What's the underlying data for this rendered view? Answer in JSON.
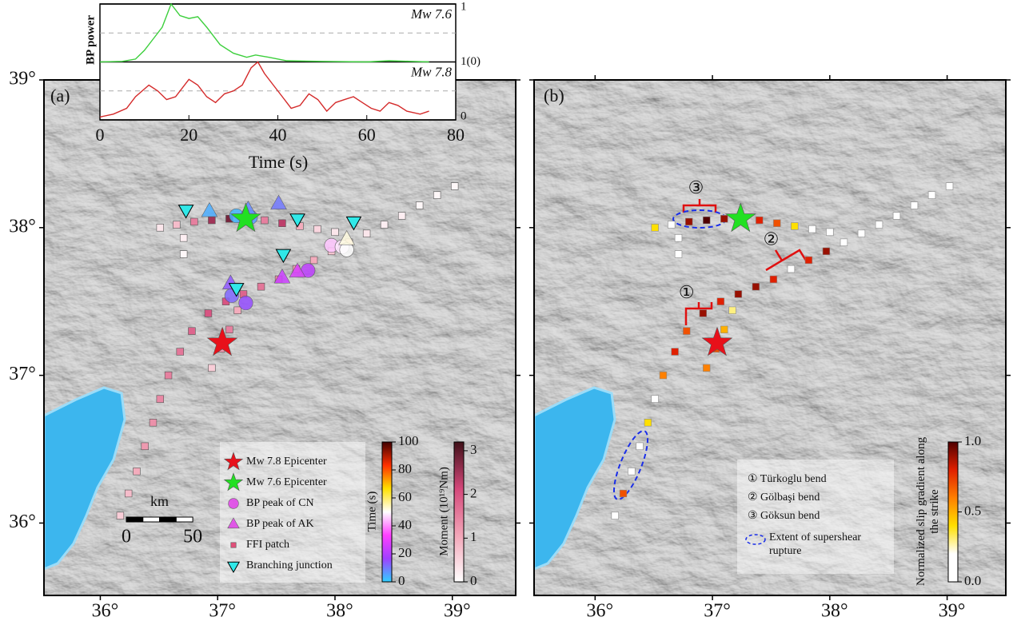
{
  "chart_data": [
    {
      "type": "line",
      "ylabel": "BP power",
      "xlabel": "Time (s)",
      "xlim": [
        0,
        80
      ],
      "xticks": [
        0,
        20,
        40,
        60,
        80
      ],
      "ylim": [
        0,
        2
      ],
      "yticks": [
        {
          "value": 0,
          "label": "0"
        },
        {
          "value": 1,
          "label": "1(0)"
        },
        {
          "value": 2,
          "label": "1"
        }
      ],
      "series": [
        {
          "name": "Mw 7.6",
          "color": "#3ccf3c",
          "x": [
            0,
            5,
            8,
            10,
            12,
            14,
            16,
            18,
            20,
            22,
            24,
            27,
            30,
            33,
            35,
            38,
            42,
            50,
            60,
            65,
            70,
            74
          ],
          "values": [
            1.0,
            1.01,
            1.05,
            1.2,
            1.4,
            1.6,
            2.0,
            1.8,
            1.75,
            1.78,
            1.6,
            1.3,
            1.15,
            1.08,
            1.12,
            1.08,
            1.02,
            1.01,
            1.0,
            1.02,
            1.01,
            1.0
          ]
        },
        {
          "name": "Mw 7.8",
          "color": "#d42a2a",
          "x": [
            0,
            3,
            6,
            8,
            11,
            13,
            15,
            17,
            20,
            22,
            24,
            26,
            28,
            30,
            32,
            34,
            35.5,
            37,
            39,
            41,
            43,
            45,
            47,
            49,
            51,
            53,
            55,
            57,
            59,
            61,
            63,
            65,
            67,
            69,
            72,
            74
          ],
          "values": [
            0.05,
            0.1,
            0.2,
            0.4,
            0.6,
            0.5,
            0.35,
            0.4,
            0.7,
            0.6,
            0.4,
            0.3,
            0.45,
            0.5,
            0.6,
            0.9,
            1.0,
            0.8,
            0.6,
            0.4,
            0.2,
            0.25,
            0.45,
            0.35,
            0.15,
            0.3,
            0.35,
            0.4,
            0.3,
            0.2,
            0.15,
            0.3,
            0.25,
            0.15,
            0.1,
            0.15
          ]
        }
      ]
    },
    {
      "type": "map",
      "panel_label": "(a)",
      "xlim": [
        35.52,
        39.54
      ],
      "ylim": [
        35.51,
        39.0
      ],
      "xticks": [
        {
          "value": 36,
          "label": "36°"
        },
        {
          "value": 37,
          "label": "37°"
        },
        {
          "value": 38,
          "label": "38°"
        },
        {
          "value": 39,
          "label": "39°"
        }
      ],
      "yticks": [
        {
          "value": 36,
          "label": "36°"
        },
        {
          "value": 37,
          "label": "37°"
        },
        {
          "value": 38,
          "label": "38°"
        },
        {
          "value": 39,
          "label": "39°"
        }
      ],
      "series": [
        {
          "name": "Mw 7.8 Epicenter",
          "marker": "star",
          "color": "#e8101a",
          "x": [
            37.04
          ],
          "y": [
            37.22
          ]
        },
        {
          "name": "Mw 7.6 Epicenter",
          "marker": "star",
          "color": "#22e022",
          "x": [
            37.24
          ],
          "y": [
            38.06
          ]
        },
        {
          "name": "BP peak of CN",
          "marker": "circle",
          "color": "#e040e8",
          "x": [
            37.97,
            38.06,
            38.1,
            37.77,
            37.24,
            37.12,
            37.16,
            37.28
          ],
          "y": [
            37.88,
            37.87,
            37.85,
            37.71,
            37.49,
            37.54,
            38.08,
            38.07
          ],
          "time": [
            45,
            48,
            50,
            22,
            15,
            12,
            3,
            6
          ]
        },
        {
          "name": "BP peak of AK",
          "marker": "triangle",
          "color": "#e040e8",
          "x": [
            36.93,
            37.26,
            37.52,
            37.11,
            37.55,
            37.68,
            38.1
          ],
          "y": [
            38.11,
            38.12,
            38.16,
            37.62,
            37.66,
            37.7,
            37.92
          ],
          "time": [
            4,
            8,
            10,
            14,
            24,
            27,
            52
          ]
        },
        {
          "name": "FFI patch",
          "marker": "square",
          "color": "#e0507a",
          "x": [
            36.17,
            36.24,
            36.31,
            36.38,
            36.45,
            36.51,
            36.58,
            36.68,
            36.78,
            36.92,
            37.07,
            37.22,
            37.37,
            37.52,
            37.67,
            37.82,
            37.97,
            38.12,
            38.27,
            38.42,
            38.57,
            38.72,
            38.87,
            39.02,
            36.95,
            37.03,
            37.1,
            37.17,
            36.51,
            36.65,
            36.8,
            36.95,
            37.1,
            37.25,
            37.4,
            37.55,
            37.7,
            37.85,
            38.0,
            36.71,
            36.71
          ],
          "y": [
            36.05,
            36.2,
            36.35,
            36.52,
            36.68,
            36.84,
            37.0,
            37.16,
            37.3,
            37.42,
            37.5,
            37.55,
            37.6,
            37.65,
            37.72,
            37.78,
            37.84,
            37.9,
            37.96,
            38.02,
            38.08,
            38.15,
            38.22,
            38.28,
            37.05,
            37.18,
            37.31,
            37.44,
            38.0,
            38.02,
            38.04,
            38.05,
            38.06,
            38.06,
            38.05,
            38.03,
            38.01,
            37.99,
            37.97,
            37.93,
            37.82
          ],
          "moment": [
            0.6,
            0.8,
            1.0,
            1.2,
            1.3,
            1.4,
            1.5,
            1.6,
            1.8,
            2.0,
            2.0,
            1.8,
            1.6,
            1.4,
            1.2,
            1.0,
            0.7,
            0.5,
            0.3,
            0.2,
            0.2,
            0.1,
            0.1,
            0.1,
            0.6,
            1.2,
            1.5,
            1.0,
            0.3,
            0.8,
            1.5,
            2.5,
            2.8,
            2.0,
            1.5,
            2.3,
            1.0,
            0.5,
            0.3,
            0.2,
            0.1
          ]
        },
        {
          "name": "Branching junction",
          "marker": "triangle-down",
          "color": "#30e8e8",
          "x": [
            36.73,
            37.68,
            38.16,
            37.56,
            37.16
          ],
          "y": [
            38.12,
            38.06,
            38.04,
            37.82,
            37.59
          ]
        }
      ],
      "colorbars": [
        {
          "label": "Time (s)",
          "field": "time",
          "lim": [
            0,
            100
          ],
          "ticks": [
            0,
            20,
            40,
            60,
            80,
            100
          ],
          "colors": [
            "#30d0ff",
            "#a040ff",
            "#ff40ff",
            "#ffffff",
            "#ffe000",
            "#ff3000",
            "#400000"
          ]
        },
        {
          "label": "Moment (10¹⁹Nm)",
          "field": "moment",
          "lim": [
            0,
            3.2
          ],
          "ticks": [
            0,
            1,
            2,
            3
          ],
          "colors": [
            "#ffffff",
            "#f2a6b8",
            "#d4487a",
            "#401018"
          ]
        }
      ],
      "scale_bar": {
        "unit": "km",
        "ticks": [
          0,
          50
        ]
      }
    },
    {
      "type": "map",
      "panel_label": "(b)",
      "xlim": [
        35.48,
        39.5
      ],
      "ylim": [
        35.51,
        39.0
      ],
      "xticks": [
        {
          "value": 36,
          "label": "36°"
        },
        {
          "value": 37,
          "label": "37°"
        },
        {
          "value": 38,
          "label": "38°"
        },
        {
          "value": 39,
          "label": "39°"
        }
      ],
      "yticks": [
        36,
        37,
        38,
        39
      ],
      "show_ytick_labels": false,
      "patches": {
        "x": [
          36.17,
          36.24,
          36.31,
          36.38,
          36.45,
          36.51,
          36.58,
          36.68,
          36.78,
          36.92,
          37.07,
          37.22,
          37.37,
          37.52,
          37.67,
          37.82,
          37.97,
          38.12,
          38.27,
          38.42,
          38.57,
          38.72,
          38.87,
          39.02,
          36.95,
          37.03,
          37.1,
          37.17,
          36.51,
          36.65,
          36.8,
          36.95,
          37.1,
          37.25,
          37.4,
          37.55,
          37.7,
          37.85,
          38.0,
          36.71,
          36.71
        ],
        "y": [
          36.05,
          36.2,
          36.35,
          36.52,
          36.68,
          36.84,
          37.0,
          37.16,
          37.3,
          37.42,
          37.5,
          37.55,
          37.6,
          37.65,
          37.72,
          37.78,
          37.84,
          37.9,
          37.96,
          38.02,
          38.08,
          38.15,
          38.22,
          38.28,
          37.05,
          37.18,
          37.31,
          37.44,
          38.0,
          38.02,
          38.04,
          38.05,
          38.06,
          38.06,
          38.05,
          38.03,
          38.01,
          37.99,
          37.97,
          37.93,
          37.82
        ],
        "slip_gradient": [
          0,
          0.7,
          0,
          0,
          0.4,
          0,
          0.6,
          0.8,
          0.7,
          0.9,
          0.8,
          0.9,
          0.9,
          0.8,
          0,
          0.8,
          0.9,
          0,
          0,
          0,
          0,
          0,
          0,
          0,
          0.6,
          0.7,
          0.5,
          0.3,
          0.4,
          0,
          0.9,
          1.0,
          0.9,
          0,
          0.8,
          0.7,
          0.4,
          0,
          0,
          0,
          0
        ]
      },
      "series": [
        {
          "marker": "star",
          "color": "#e8101a",
          "x": [
            37.04
          ],
          "y": [
            37.22
          ]
        },
        {
          "marker": "star",
          "color": "#22e022",
          "x": [
            37.24
          ],
          "y": [
            38.06
          ]
        }
      ],
      "annotations": [
        {
          "text": "①",
          "x": 36.78,
          "y": 37.55
        },
        {
          "text": "②",
          "x": 37.5,
          "y": 37.91
        },
        {
          "text": "③",
          "x": 36.86,
          "y": 38.26
        }
      ],
      "legend": [
        "① Türkoglu bend",
        "② Gölbaşi bend",
        "③ Göksun bend",
        "Extent of supershear rupture"
      ],
      "colorbars": [
        {
          "label": "Normalized slip gradient along the strike",
          "field": "slip_gradient",
          "lim": [
            0,
            1
          ],
          "ticks": [
            {
              "value": 0,
              "label": "0.0"
            },
            {
              "value": 0.5,
              "label": "0.5"
            },
            {
              "value": 1,
              "label": "1.0"
            }
          ],
          "colors": [
            "#ffffff",
            "#ffffff",
            "#ffe000",
            "#ff8000",
            "#e02000",
            "#500000"
          ]
        }
      ]
    }
  ]
}
